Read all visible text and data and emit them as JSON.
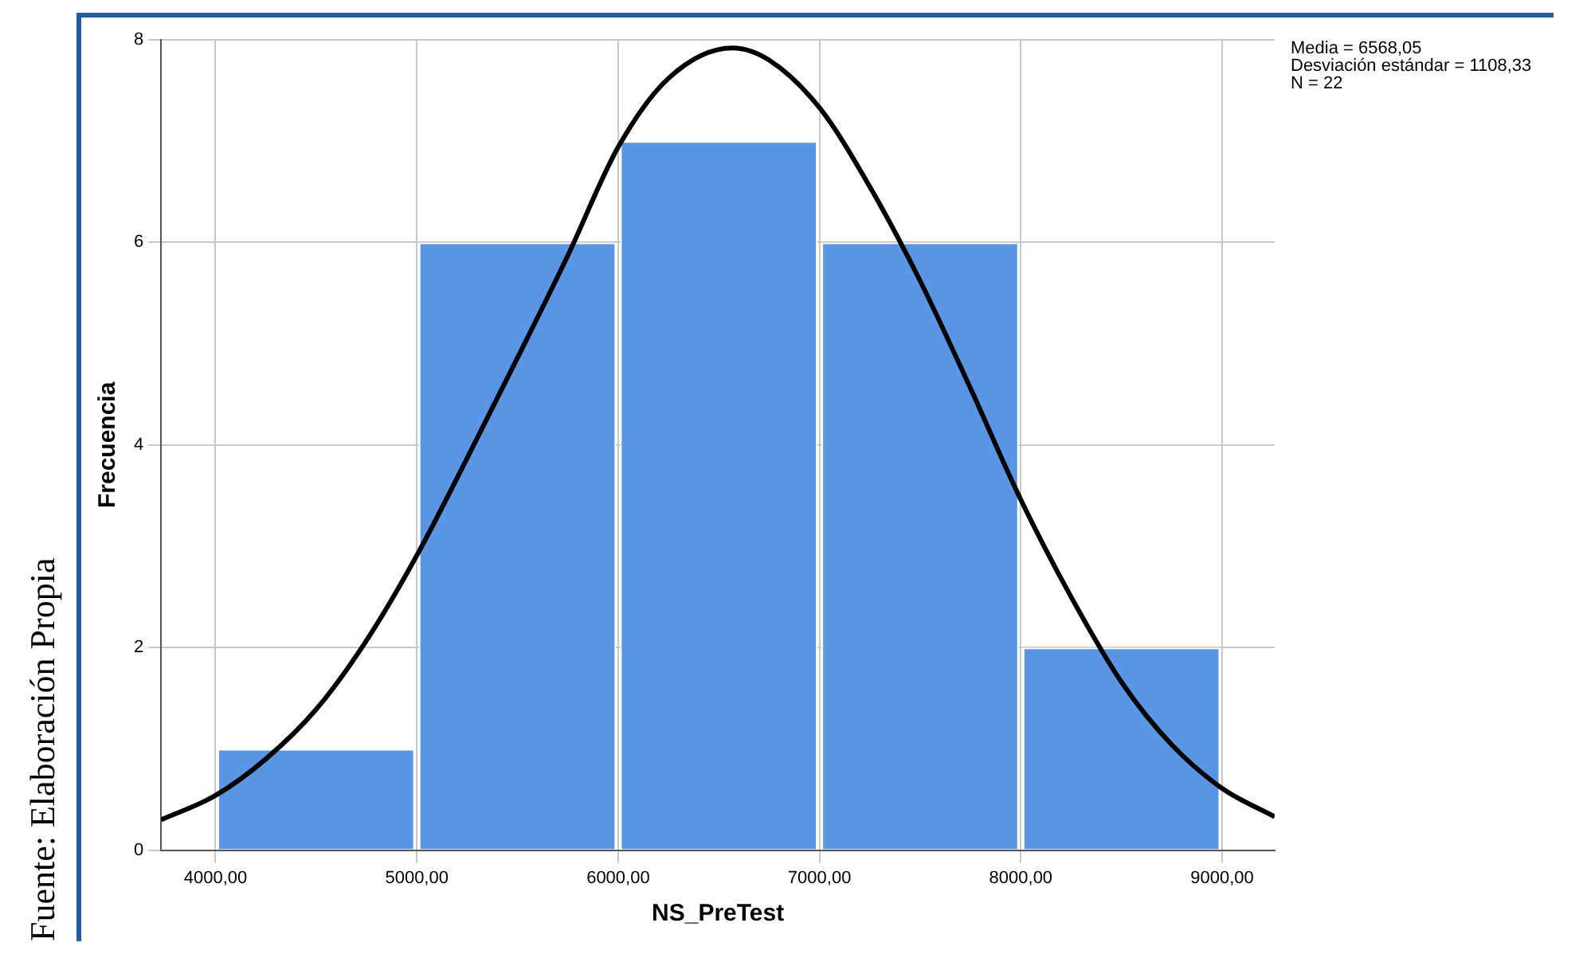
{
  "chart_data": {
    "type": "histogram",
    "xlabel": "NS_PreTest",
    "ylabel": "Frecuencia",
    "bins": [
      4000,
      5000,
      6000,
      7000,
      8000,
      9000
    ],
    "values": [
      1,
      6,
      7,
      6,
      2
    ],
    "color": "#5a96e3",
    "series": [
      {
        "type": "line",
        "color": "#000000",
        "x": [
          3730,
          4000,
          4250,
          4500,
          4750,
          5000,
          5250,
          5500,
          5750,
          6000,
          6250,
          6568,
          6750,
          7000,
          7250,
          7500,
          7750,
          8000,
          8250,
          8500,
          8750,
          9000,
          9261
        ],
        "values": [
          0.3,
          0.54,
          0.9,
          1.39,
          2.07,
          2.91,
          3.87,
          4.86,
          5.87,
          6.94,
          7.62,
          7.92,
          7.8,
          7.33,
          6.55,
          5.62,
          4.56,
          3.46,
          2.5,
          1.66,
          1.04,
          0.61,
          0.33
        ]
      }
    ],
    "xlim": [
      3730,
      9261
    ],
    "xticks": [
      {
        "value": 4000,
        "label": "4000,00"
      },
      {
        "value": 5000,
        "label": "5000,00"
      },
      {
        "value": 6000,
        "label": "6000,00"
      },
      {
        "value": 7000,
        "label": "7000,00"
      },
      {
        "value": 8000,
        "label": "8000,00"
      },
      {
        "value": 9000,
        "label": "9000,00"
      }
    ],
    "ylim": [
      0,
      8
    ],
    "yticks": [
      0,
      2,
      4,
      6,
      8
    ],
    "grid": true,
    "marker": "none",
    "annotations": [
      "Media = 6568,05",
      "Desviación estándar = 1108,33",
      "N = 22",
      "Fuente: Elaboración Propia"
    ]
  }
}
